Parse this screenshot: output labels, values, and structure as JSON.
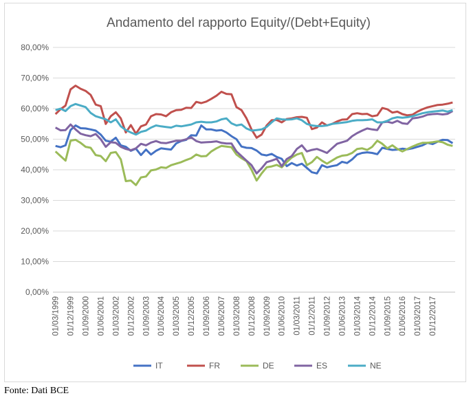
{
  "source_note": "Fonte: Dati BCE",
  "chart_data": {
    "type": "line",
    "title": "Andamento del rapporto Equity/(Debt+Equity)",
    "xlabel": "",
    "ylabel": "",
    "ylim": [
      0,
      80
    ],
    "y_ticks": [
      "0,00%",
      "10,00%",
      "20,00%",
      "30,00%",
      "40,00%",
      "50,00%",
      "60,00%",
      "70,00%",
      "80,00%"
    ],
    "x_tick_labels": [
      "01/03/1999",
      "01/12/1999",
      "01/09/2000",
      "01/06/2001",
      "01/03/2002",
      "01/12/2002",
      "01/09/2003",
      "01/06/2004",
      "01/03/2005",
      "01/12/2005",
      "01/09/2006",
      "01/06/2007",
      "01/03/2008",
      "01/12/2008",
      "01/09/2009",
      "01/06/2010",
      "01/03/2011",
      "01/12/2011",
      "01/09/2012",
      "01/06/2013",
      "01/03/2014",
      "01/12/2014",
      "01/09/2015",
      "01/06/2016",
      "01/03/2017",
      "01/12/2017"
    ],
    "x_start": "1999Q1",
    "x_end": "2018Q1",
    "grid": "horizontal",
    "legend_position": "bottom",
    "series": [
      {
        "name": "IT",
        "color": "#4472c4",
        "values": [
          47.8,
          47.4,
          48.0,
          53.0,
          54.5,
          53.6,
          53.5,
          53.2,
          52.8,
          51.5,
          49.5,
          49.2,
          50.5,
          48.0,
          47.5,
          46.2,
          46.9,
          44.8,
          46.6,
          45.0,
          46.2,
          47.0,
          46.8,
          46.6,
          48.6,
          49.4,
          49.8,
          51.3,
          51.2,
          54.5,
          53.2,
          53.2,
          52.8,
          53.0,
          52.2,
          51.0,
          50.0,
          47.6,
          47.2,
          47.1,
          46.3,
          45.0,
          44.7,
          45.2,
          44.2,
          43.6,
          41.2,
          42.2,
          41.4,
          42.0,
          40.6,
          39.2,
          38.8,
          41.5,
          40.8,
          41.2,
          41.5,
          42.6,
          42.2,
          43.4,
          45.0,
          45.5,
          45.7,
          45.5,
          45.1,
          47.2,
          46.8,
          46.5,
          46.6,
          46.9,
          46.7,
          47.0,
          47.5,
          48.0,
          48.8,
          48.4,
          49.2,
          49.8,
          49.7,
          48.7
        ]
      },
      {
        "name": "FR",
        "color": "#c0504d",
        "values": [
          58.2,
          59.8,
          61.0,
          66.3,
          67.5,
          66.5,
          65.8,
          64.5,
          61.3,
          60.8,
          55.0,
          57.5,
          58.8,
          56.8,
          52.2,
          54.6,
          51.8,
          54.2,
          54.8,
          57.5,
          58.2,
          58.1,
          57.5,
          58.8,
          59.5,
          59.6,
          60.3,
          60.2,
          62.2,
          61.8,
          62.3,
          63.2,
          64.2,
          65.5,
          64.8,
          64.7,
          60.5,
          59.5,
          56.8,
          53.2,
          50.5,
          51.5,
          54.5,
          56.2,
          56.3,
          55.5,
          56.6,
          56.8,
          57.2,
          57.3,
          57.0,
          53.3,
          53.8,
          55.5,
          54.5,
          55.0,
          55.8,
          56.4,
          56.5,
          58.2,
          58.5,
          58.2,
          58.3,
          57.5,
          57.8,
          60.2,
          59.8,
          58.7,
          59.0,
          58.2,
          57.8,
          58.0,
          59.0,
          59.8,
          60.4,
          60.8,
          61.2,
          61.3,
          61.6,
          62.0
        ]
      },
      {
        "name": "DE",
        "color": "#9bbb59",
        "values": [
          46.0,
          44.5,
          43.0,
          49.5,
          49.8,
          48.8,
          47.5,
          47.2,
          44.8,
          44.5,
          42.8,
          45.5,
          45.8,
          43.4,
          36.3,
          36.5,
          35.0,
          37.5,
          37.8,
          39.8,
          40.1,
          40.8,
          40.6,
          41.5,
          42.0,
          42.5,
          43.2,
          43.8,
          45.0,
          44.4,
          44.5,
          46.0,
          47.0,
          47.8,
          47.6,
          47.4,
          45.0,
          43.8,
          42.8,
          40.0,
          36.5,
          38.8,
          40.8,
          41.1,
          41.6,
          40.8,
          42.5,
          44.0,
          45.0,
          45.5,
          41.5,
          42.5,
          44.2,
          43.0,
          42.0,
          43.0,
          44.0,
          44.6,
          44.8,
          45.5,
          46.8,
          47.0,
          46.5,
          47.5,
          49.5,
          48.5,
          47.0,
          48.0,
          46.8,
          46.0,
          46.8,
          47.6,
          48.3,
          48.8,
          48.8,
          49.0,
          49.3,
          49.0,
          48.2,
          47.8
        ]
      },
      {
        "name": "ES",
        "color": "#8064a2",
        "values": [
          53.8,
          52.9,
          53.0,
          54.8,
          53.2,
          51.8,
          51.3,
          51.0,
          51.7,
          50.0,
          47.5,
          49.0,
          48.8,
          47.5,
          46.8,
          46.4,
          47.0,
          48.5,
          48.0,
          48.9,
          49.4,
          48.8,
          48.7,
          49.1,
          49.5,
          49.5,
          50.0,
          50.6,
          49.4,
          48.9,
          49.0,
          49.1,
          49.3,
          48.8,
          48.6,
          48.6,
          46.0,
          44.5,
          43.0,
          41.5,
          38.8,
          40.5,
          42.5,
          43.0,
          43.6,
          41.2,
          43.5,
          44.5,
          46.8,
          48.0,
          46.0,
          46.5,
          46.8,
          46.2,
          45.5,
          47.0,
          48.5,
          49.0,
          49.5,
          51.0,
          52.0,
          52.8,
          53.5,
          53.2,
          53.0,
          55.5,
          55.7,
          55.3,
          56.0,
          55.2,
          55.0,
          56.8,
          57.0,
          57.4,
          58.0,
          58.2,
          58.3,
          58.1,
          58.3,
          59.2
        ]
      },
      {
        "name": "NE",
        "color": "#4bacc6",
        "values": [
          59.5,
          60.0,
          59.2,
          60.8,
          61.5,
          61.0,
          60.5,
          58.6,
          57.5,
          57.0,
          56.5,
          55.5,
          56.5,
          54.2,
          53.0,
          52.2,
          51.5,
          52.4,
          52.8,
          53.8,
          54.5,
          54.2,
          54.0,
          53.8,
          54.4,
          54.2,
          54.5,
          54.8,
          55.5,
          55.7,
          55.5,
          55.5,
          55.8,
          56.5,
          56.8,
          55.2,
          54.5,
          54.8,
          53.5,
          52.8,
          53.0,
          53.2,
          54.0,
          55.5,
          56.8,
          56.5,
          56.4,
          56.5,
          56.8,
          56.2,
          55.0,
          54.5,
          54.3,
          54.3,
          54.5,
          55.0,
          55.2,
          55.4,
          55.6,
          56.0,
          56.2,
          56.2,
          56.3,
          56.5,
          55.5,
          55.5,
          56.0,
          56.8,
          57.2,
          57.0,
          57.2,
          57.5,
          58.0,
          58.5,
          58.8,
          59.0,
          59.2,
          59.4,
          59.0,
          59.5
        ]
      }
    ]
  }
}
